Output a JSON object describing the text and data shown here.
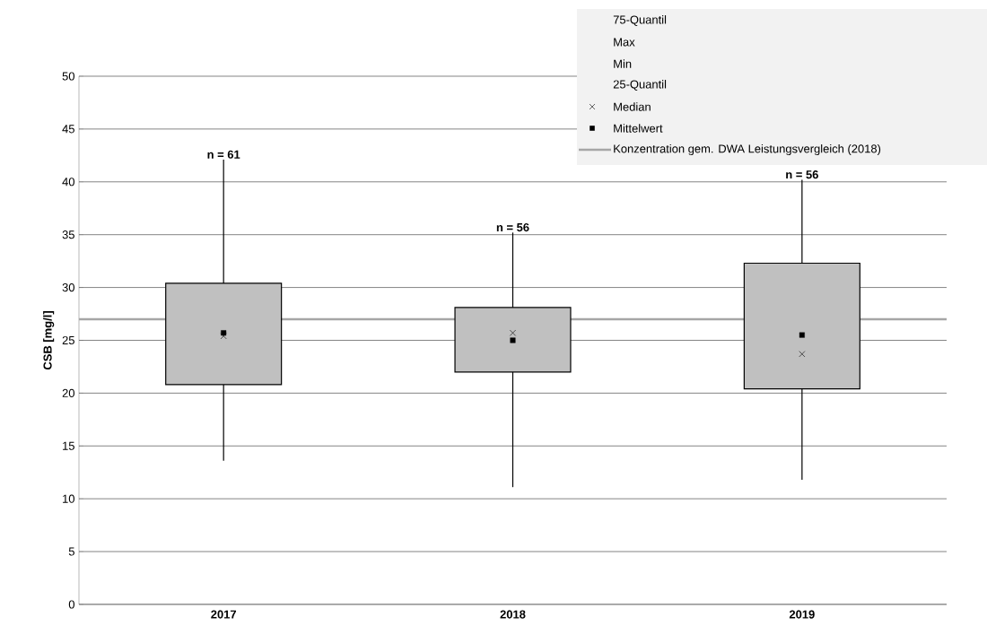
{
  "chart_data": {
    "type": "box",
    "ylabel": "CSB [mg/l]",
    "categories": [
      "2017",
      "2018",
      "2019"
    ],
    "boxes": [
      {
        "low": 13.6,
        "q1": 20.8,
        "median": 25.4,
        "q3": 30.4,
        "high": 42.1
      },
      {
        "low": 11.1,
        "q1": 22.0,
        "median": 25.7,
        "q3": 28.1,
        "high": 35.2
      },
      {
        "low": 11.8,
        "q1": 20.4,
        "median": 23.7,
        "q3": 32.3,
        "high": 40.2
      }
    ],
    "color": "#c0c0c0",
    "series": [
      {
        "name": "Mittelwert",
        "type": "scatter",
        "color": "#000000",
        "marker": "square",
        "values": [
          25.7,
          25.0,
          25.5
        ]
      }
    ],
    "ylim": [
      0,
      50
    ],
    "yticks": [
      0,
      5,
      10,
      15,
      20,
      25,
      30,
      35,
      40,
      45,
      50
    ],
    "grid": "y",
    "legend": "top right",
    "ref_lines": [
      {
        "axis": "y",
        "value": 27,
        "label": "Konzentration gem. DWA Leistungsvergleich (2018)",
        "color": "#a6a6a6"
      }
    ],
    "annotations": [
      "75-Quantil",
      "Max",
      "Min",
      "25-Quantil",
      "Median",
      {
        "text": "n = 61",
        "x": "2017",
        "y": 42.1
      },
      {
        "text": "n = 56",
        "x": "2018",
        "y": 35.2
      },
      {
        "text": "n = 56",
        "x": "2019",
        "y": 40.2
      }
    ]
  }
}
